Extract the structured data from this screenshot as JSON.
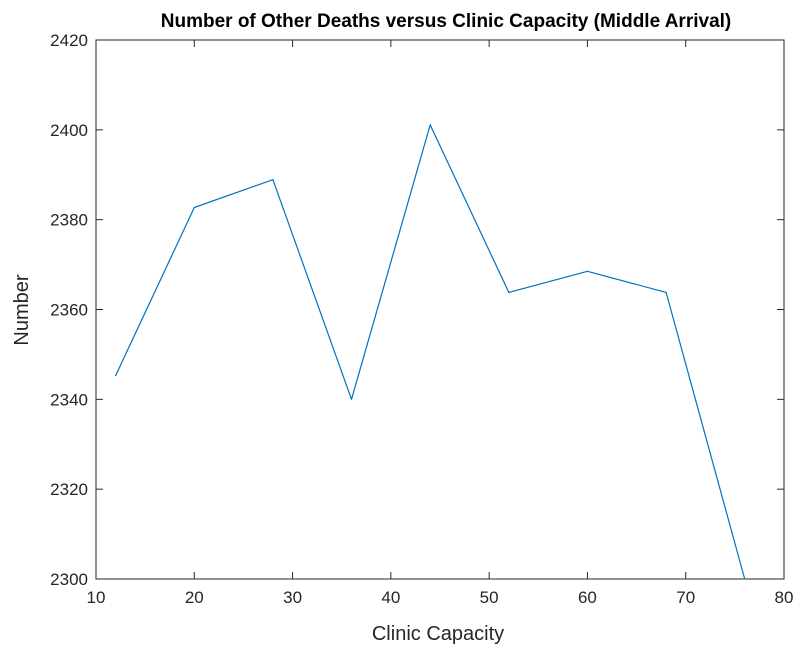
{
  "chart_data": {
    "type": "line",
    "title": "Number of Other Deaths versus Clinic Capacity (Middle Arrival)",
    "xlabel": "Clinic Capacity",
    "ylabel": "Number",
    "xlim": [
      10,
      80
    ],
    "ylim": [
      2300,
      2420
    ],
    "xticks": [
      10,
      20,
      30,
      40,
      50,
      60,
      70,
      80
    ],
    "yticks": [
      2300,
      2320,
      2340,
      2360,
      2380,
      2400,
      2420
    ],
    "grid": false,
    "series": [
      {
        "x": [
          12,
          20,
          28,
          36,
          44,
          52,
          60,
          68,
          76
        ],
        "y": [
          2345.3,
          2382.7,
          2388.9,
          2340.0,
          2401.1,
          2363.8,
          2368.5,
          2363.8,
          2300.0
        ]
      }
    ],
    "colors": {
      "line": "#0072bd",
      "axis": "#262626"
    }
  }
}
